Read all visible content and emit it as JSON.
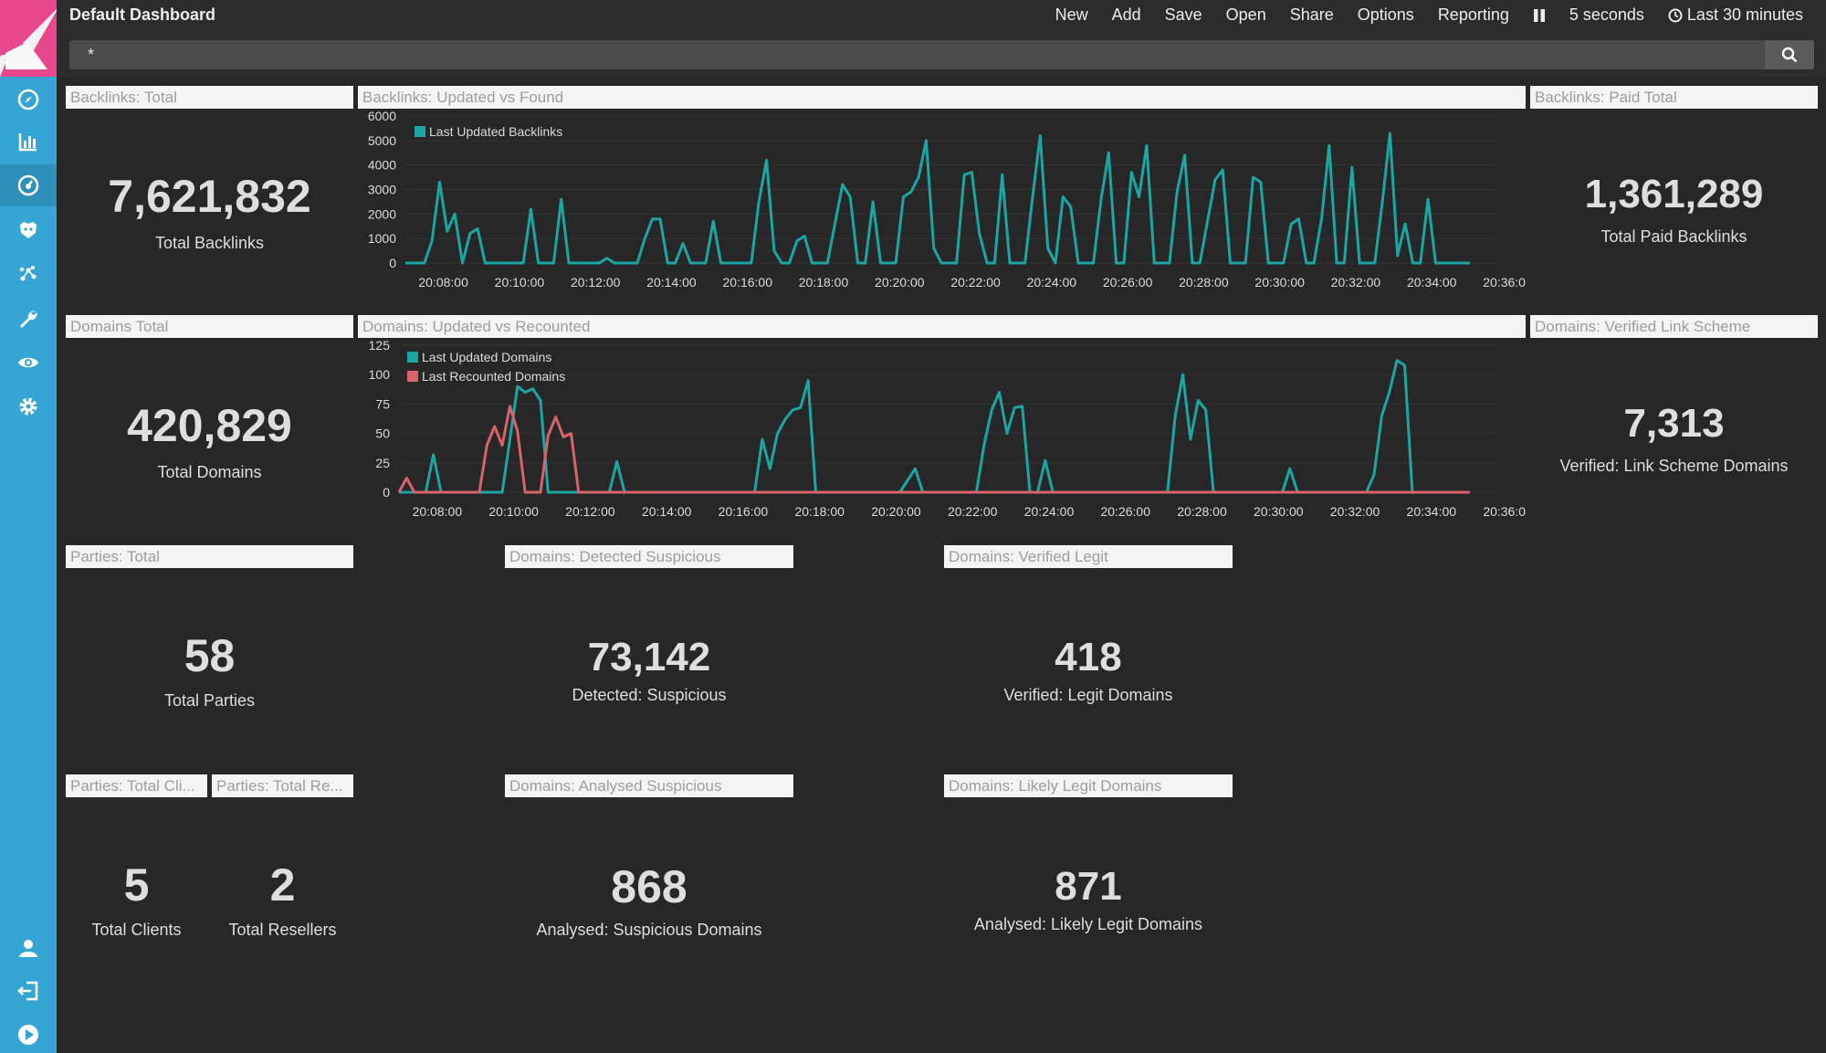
{
  "header": {
    "title": "Default Dashboard",
    "menu": [
      "New",
      "Add",
      "Save",
      "Open",
      "Share",
      "Options",
      "Reporting"
    ],
    "refresh_interval": "5 seconds",
    "time_range": "Last 30 minutes"
  },
  "search": {
    "query": "*"
  },
  "sidebar": {
    "icons": [
      "discover-icon",
      "visualize-icon",
      "dashboard-icon",
      "timelion-icon",
      "graph-icon",
      "dev-tools-icon",
      "monitoring-icon",
      "management-icon",
      "user-icon",
      "logout-icon",
      "collapse-icon"
    ]
  },
  "colors": {
    "teal": "#1ba6a4",
    "red": "#d9636b",
    "sidebar": "#35a5d6",
    "logo": "#e8478b"
  },
  "panels": {
    "backlinks_total": {
      "title": "Backlinks: Total",
      "value": "7,621,832",
      "label": "Total Backlinks"
    },
    "backlinks_updated": {
      "title": "Backlinks: Updated vs Found"
    },
    "backlinks_paid": {
      "title": "Backlinks: Paid Total",
      "value": "1,361,289",
      "label": "Total Paid Backlinks"
    },
    "domains_total": {
      "title": "Domains Total",
      "value": "420,829",
      "label": "Total Domains"
    },
    "domains_updated": {
      "title": "Domains: Updated vs Recounted"
    },
    "domains_link_scheme": {
      "title": "Domains: Verified Link Scheme",
      "value": "7,313",
      "label": "Verified: Link Scheme Domains"
    },
    "parties_total": {
      "title": "Parties: Total",
      "value": "58",
      "label": "Total Parties"
    },
    "domains_suspicious": {
      "title": "Domains: Detected Suspicious",
      "value": "73,142",
      "label": "Detected: Suspicious"
    },
    "domains_legit": {
      "title": "Domains: Verified Legit",
      "value": "418",
      "label": "Verified: Legit Domains"
    },
    "parties_clients": {
      "title": "Parties: Total Cli...",
      "value": "5",
      "label": "Total Clients"
    },
    "parties_resellers": {
      "title": "Parties: Total Re...",
      "value": "2",
      "label": "Total Resellers"
    },
    "domains_analysed": {
      "title": "Domains: Analysed Suspicious",
      "value": "868",
      "label": "Analysed: Suspicious Domains"
    },
    "domains_likely_legit": {
      "title": "Domains: Likely Legit Domains",
      "value": "871",
      "label": "Analysed: Likely Legit Domains"
    }
  },
  "chart_data": [
    {
      "type": "line",
      "title": "Backlinks: Updated vs Found",
      "x_ticks": [
        "20:08:00",
        "20:10:00",
        "20:12:00",
        "20:14:00",
        "20:16:00",
        "20:18:00",
        "20:20:00",
        "20:22:00",
        "20:24:00",
        "20:26:00",
        "20:28:00",
        "20:30:00",
        "20:32:00",
        "20:34:00",
        "20:36:00"
      ],
      "x_range_minutes": [
        0,
        30.7
      ],
      "ylim": [
        0,
        6000
      ],
      "y_ticks": [
        0,
        1000,
        2000,
        3000,
        4000,
        5000,
        6000
      ],
      "legend_position": "top-left",
      "series": [
        {
          "name": "Last Updated Backlinks",
          "color": "#1ba6a4",
          "points": [
            [
              0,
              0
            ],
            [
              0.5,
              0
            ],
            [
              0.7,
              900
            ],
            [
              0.9,
              3300
            ],
            [
              1.1,
              1300
            ],
            [
              1.3,
              2000
            ],
            [
              1.5,
              0
            ],
            [
              1.7,
              1200
            ],
            [
              1.9,
              1400
            ],
            [
              2.1,
              0
            ],
            [
              2.5,
              0
            ],
            [
              2.9,
              0
            ],
            [
              3.1,
              0
            ],
            [
              3.3,
              2200
            ],
            [
              3.5,
              0
            ],
            [
              3.9,
              0
            ],
            [
              4.1,
              2600
            ],
            [
              4.3,
              0
            ],
            [
              4.7,
              0
            ],
            [
              5.1,
              0
            ],
            [
              5.3,
              200
            ],
            [
              5.5,
              0
            ],
            [
              5.9,
              0
            ],
            [
              6.1,
              0
            ],
            [
              6.3,
              1000
            ],
            [
              6.5,
              1800
            ],
            [
              6.7,
              1800
            ],
            [
              6.9,
              0
            ],
            [
              7.1,
              0
            ],
            [
              7.3,
              800
            ],
            [
              7.5,
              0
            ],
            [
              7.9,
              0
            ],
            [
              8.1,
              1700
            ],
            [
              8.3,
              0
            ],
            [
              8.7,
              0
            ],
            [
              9.1,
              0
            ],
            [
              9.3,
              2500
            ],
            [
              9.5,
              4200
            ],
            [
              9.7,
              500
            ],
            [
              9.9,
              0
            ],
            [
              10.1,
              0
            ],
            [
              10.3,
              900
            ],
            [
              10.5,
              1100
            ],
            [
              10.7,
              0
            ],
            [
              11.1,
              0
            ],
            [
              11.5,
              3200
            ],
            [
              11.7,
              2700
            ],
            [
              11.9,
              0
            ],
            [
              12.1,
              0
            ],
            [
              12.3,
              2500
            ],
            [
              12.5,
              0
            ],
            [
              12.9,
              0
            ],
            [
              13.1,
              2700
            ],
            [
              13.3,
              2900
            ],
            [
              13.5,
              3500
            ],
            [
              13.7,
              5000
            ],
            [
              13.9,
              600
            ],
            [
              14.1,
              0
            ],
            [
              14.3,
              0
            ],
            [
              14.5,
              0
            ],
            [
              14.7,
              3600
            ],
            [
              14.9,
              3700
            ],
            [
              15.1,
              1200
            ],
            [
              15.3,
              0
            ],
            [
              15.5,
              0
            ],
            [
              15.7,
              3600
            ],
            [
              15.9,
              0
            ],
            [
              16.3,
              0
            ],
            [
              16.5,
              2700
            ],
            [
              16.7,
              5200
            ],
            [
              16.9,
              600
            ],
            [
              17.1,
              0
            ],
            [
              17.3,
              2700
            ],
            [
              17.5,
              2300
            ],
            [
              17.7,
              0
            ],
            [
              18.1,
              0
            ],
            [
              18.3,
              2600
            ],
            [
              18.5,
              4500
            ],
            [
              18.7,
              0
            ],
            [
              18.9,
              0
            ],
            [
              19.1,
              3700
            ],
            [
              19.3,
              2700
            ],
            [
              19.5,
              4800
            ],
            [
              19.7,
              0
            ],
            [
              20.1,
              0
            ],
            [
              20.3,
              2900
            ],
            [
              20.5,
              4400
            ],
            [
              20.7,
              0
            ],
            [
              20.9,
              0
            ],
            [
              21.3,
              3400
            ],
            [
              21.5,
              3800
            ],
            [
              21.7,
              0
            ],
            [
              21.9,
              0
            ],
            [
              22.1,
              0
            ],
            [
              22.3,
              3500
            ],
            [
              22.5,
              3300
            ],
            [
              22.7,
              0
            ],
            [
              23.1,
              0
            ],
            [
              23.3,
              1600
            ],
            [
              23.5,
              1800
            ],
            [
              23.7,
              0
            ],
            [
              23.9,
              0
            ],
            [
              24.1,
              1800
            ],
            [
              24.3,
              4800
            ],
            [
              24.5,
              0
            ],
            [
              24.7,
              0
            ],
            [
              24.9,
              3900
            ],
            [
              25.1,
              0
            ],
            [
              25.3,
              0
            ],
            [
              25.5,
              0
            ],
            [
              25.7,
              2500
            ],
            [
              25.9,
              5300
            ],
            [
              26.1,
              300
            ],
            [
              26.3,
              1600
            ],
            [
              26.5,
              0
            ],
            [
              26.7,
              0
            ],
            [
              26.9,
              2600
            ],
            [
              27.1,
              0
            ],
            [
              28.0,
              0
            ]
          ]
        }
      ]
    },
    {
      "type": "line",
      "title": "Domains: Updated vs Recounted",
      "x_ticks": [
        "20:08:00",
        "20:10:00",
        "20:12:00",
        "20:14:00",
        "20:16:00",
        "20:18:00",
        "20:20:00",
        "20:22:00",
        "20:24:00",
        "20:26:00",
        "20:28:00",
        "20:30:00",
        "20:32:00",
        "20:34:00",
        "20:36:00"
      ],
      "ylim": [
        0,
        125
      ],
      "y_ticks": [
        0,
        25,
        50,
        75,
        100,
        125
      ],
      "legend_position": "top-left",
      "series": [
        {
          "name": "Last Updated Domains",
          "color": "#1ba6a4",
          "points": [
            [
              0,
              0
            ],
            [
              0.5,
              0
            ],
            [
              0.7,
              0
            ],
            [
              0.9,
              32
            ],
            [
              1.1,
              0
            ],
            [
              1.5,
              0
            ],
            [
              1.9,
              0
            ],
            [
              2.1,
              0
            ],
            [
              2.3,
              0
            ],
            [
              2.5,
              0
            ],
            [
              2.7,
              0
            ],
            [
              2.9,
              45
            ],
            [
              3.1,
              90
            ],
            [
              3.3,
              85
            ],
            [
              3.5,
              88
            ],
            [
              3.7,
              78
            ],
            [
              3.9,
              0
            ],
            [
              4.1,
              0
            ],
            [
              4.3,
              0
            ],
            [
              4.5,
              0
            ],
            [
              4.7,
              0
            ],
            [
              5.1,
              0
            ],
            [
              5.3,
              0
            ],
            [
              5.5,
              0
            ],
            [
              5.7,
              26
            ],
            [
              5.9,
              0
            ],
            [
              6.5,
              0
            ],
            [
              7.1,
              0
            ],
            [
              7.5,
              0
            ],
            [
              8.1,
              0
            ],
            [
              8.5,
              0
            ],
            [
              9.3,
              0
            ],
            [
              9.5,
              45
            ],
            [
              9.7,
              20
            ],
            [
              9.9,
              50
            ],
            [
              10.1,
              62
            ],
            [
              10.3,
              70
            ],
            [
              10.5,
              72
            ],
            [
              10.7,
              95
            ],
            [
              10.9,
              0
            ],
            [
              11.1,
              0
            ],
            [
              12.1,
              0
            ],
            [
              13.1,
              0
            ],
            [
              13.5,
              20
            ],
            [
              13.7,
              0
            ],
            [
              14.1,
              0
            ],
            [
              15.1,
              0
            ],
            [
              15.3,
              40
            ],
            [
              15.5,
              70
            ],
            [
              15.7,
              85
            ],
            [
              15.9,
              50
            ],
            [
              16.1,
              72
            ],
            [
              16.3,
              73
            ],
            [
              16.5,
              0
            ],
            [
              16.7,
              0
            ],
            [
              16.9,
              27
            ],
            [
              17.1,
              0
            ],
            [
              17.5,
              0
            ],
            [
              18.5,
              0
            ],
            [
              19.5,
              0
            ],
            [
              20.1,
              0
            ],
            [
              20.3,
              65
            ],
            [
              20.5,
              100
            ],
            [
              20.7,
              45
            ],
            [
              20.9,
              78
            ],
            [
              21.1,
              70
            ],
            [
              21.3,
              0
            ],
            [
              21.5,
              0
            ],
            [
              22.5,
              0
            ],
            [
              23.1,
              0
            ],
            [
              23.3,
              20
            ],
            [
              23.5,
              0
            ],
            [
              24.5,
              0
            ],
            [
              25.1,
              0
            ],
            [
              25.3,
              0
            ],
            [
              25.5,
              15
            ],
            [
              25.7,
              65
            ],
            [
              25.9,
              85
            ],
            [
              26.1,
              112
            ],
            [
              26.3,
              108
            ],
            [
              26.5,
              0
            ],
            [
              26.7,
              0
            ],
            [
              28.0,
              0
            ]
          ]
        },
        {
          "name": "Last Recounted Domains",
          "color": "#d9636b",
          "points": [
            [
              0,
              0
            ],
            [
              0.2,
              12
            ],
            [
              0.4,
              0
            ],
            [
              0.6,
              0
            ],
            [
              1.0,
              0
            ],
            [
              1.5,
              0
            ],
            [
              1.9,
              0
            ],
            [
              2.1,
              0
            ],
            [
              2.3,
              40
            ],
            [
              2.5,
              56
            ],
            [
              2.7,
              40
            ],
            [
              2.9,
              73
            ],
            [
              3.1,
              52
            ],
            [
              3.3,
              0
            ],
            [
              3.5,
              0
            ],
            [
              3.7,
              0
            ],
            [
              3.9,
              48
            ],
            [
              4.1,
              64
            ],
            [
              4.3,
              47
            ],
            [
              4.5,
              50
            ],
            [
              4.7,
              0
            ],
            [
              4.9,
              0
            ],
            [
              5.5,
              0
            ],
            [
              6.5,
              0
            ],
            [
              7.5,
              0
            ],
            [
              9.5,
              0
            ],
            [
              11.5,
              0
            ],
            [
              13.5,
              0
            ],
            [
              15.5,
              0
            ],
            [
              17.5,
              0
            ],
            [
              19.5,
              0
            ],
            [
              21.5,
              0
            ],
            [
              23.5,
              0
            ],
            [
              25.5,
              0
            ],
            [
              28.0,
              0
            ]
          ]
        }
      ]
    }
  ]
}
